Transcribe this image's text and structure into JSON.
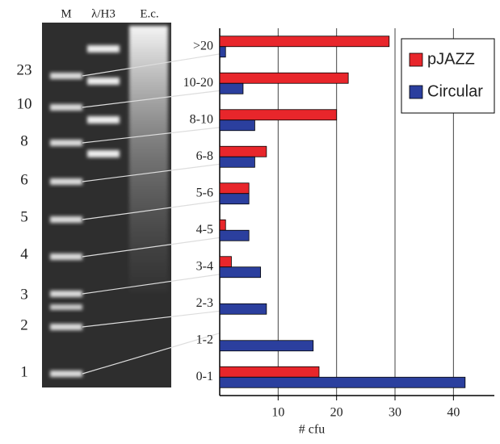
{
  "gel": {
    "lanes": [
      "M",
      "λ/H3",
      "E.c."
    ],
    "sizes": [
      "23",
      "10",
      "8",
      "6",
      "5",
      "4",
      "3",
      "2",
      "1"
    ]
  },
  "chart_data": {
    "type": "barh",
    "categories": [
      ">20",
      "10-20",
      "8-10",
      "6-8",
      "5-6",
      "4-5",
      "3-4",
      "2-3",
      "1-2",
      "0-1"
    ],
    "series": [
      {
        "name": "pJAZZ",
        "color": "#e8262b",
        "values": [
          29,
          22,
          20,
          8,
          5,
          1,
          2,
          0,
          0,
          17
        ]
      },
      {
        "name": "Circular",
        "color": "#2b3f9e",
        "values": [
          1,
          4,
          6,
          6,
          5,
          5,
          7,
          8,
          16,
          42
        ]
      }
    ],
    "xlabel": "# cfu",
    "xlim": [
      0,
      47
    ],
    "xticks": [
      10,
      20,
      30,
      40
    ],
    "grid": true,
    "legend": "upper right"
  }
}
